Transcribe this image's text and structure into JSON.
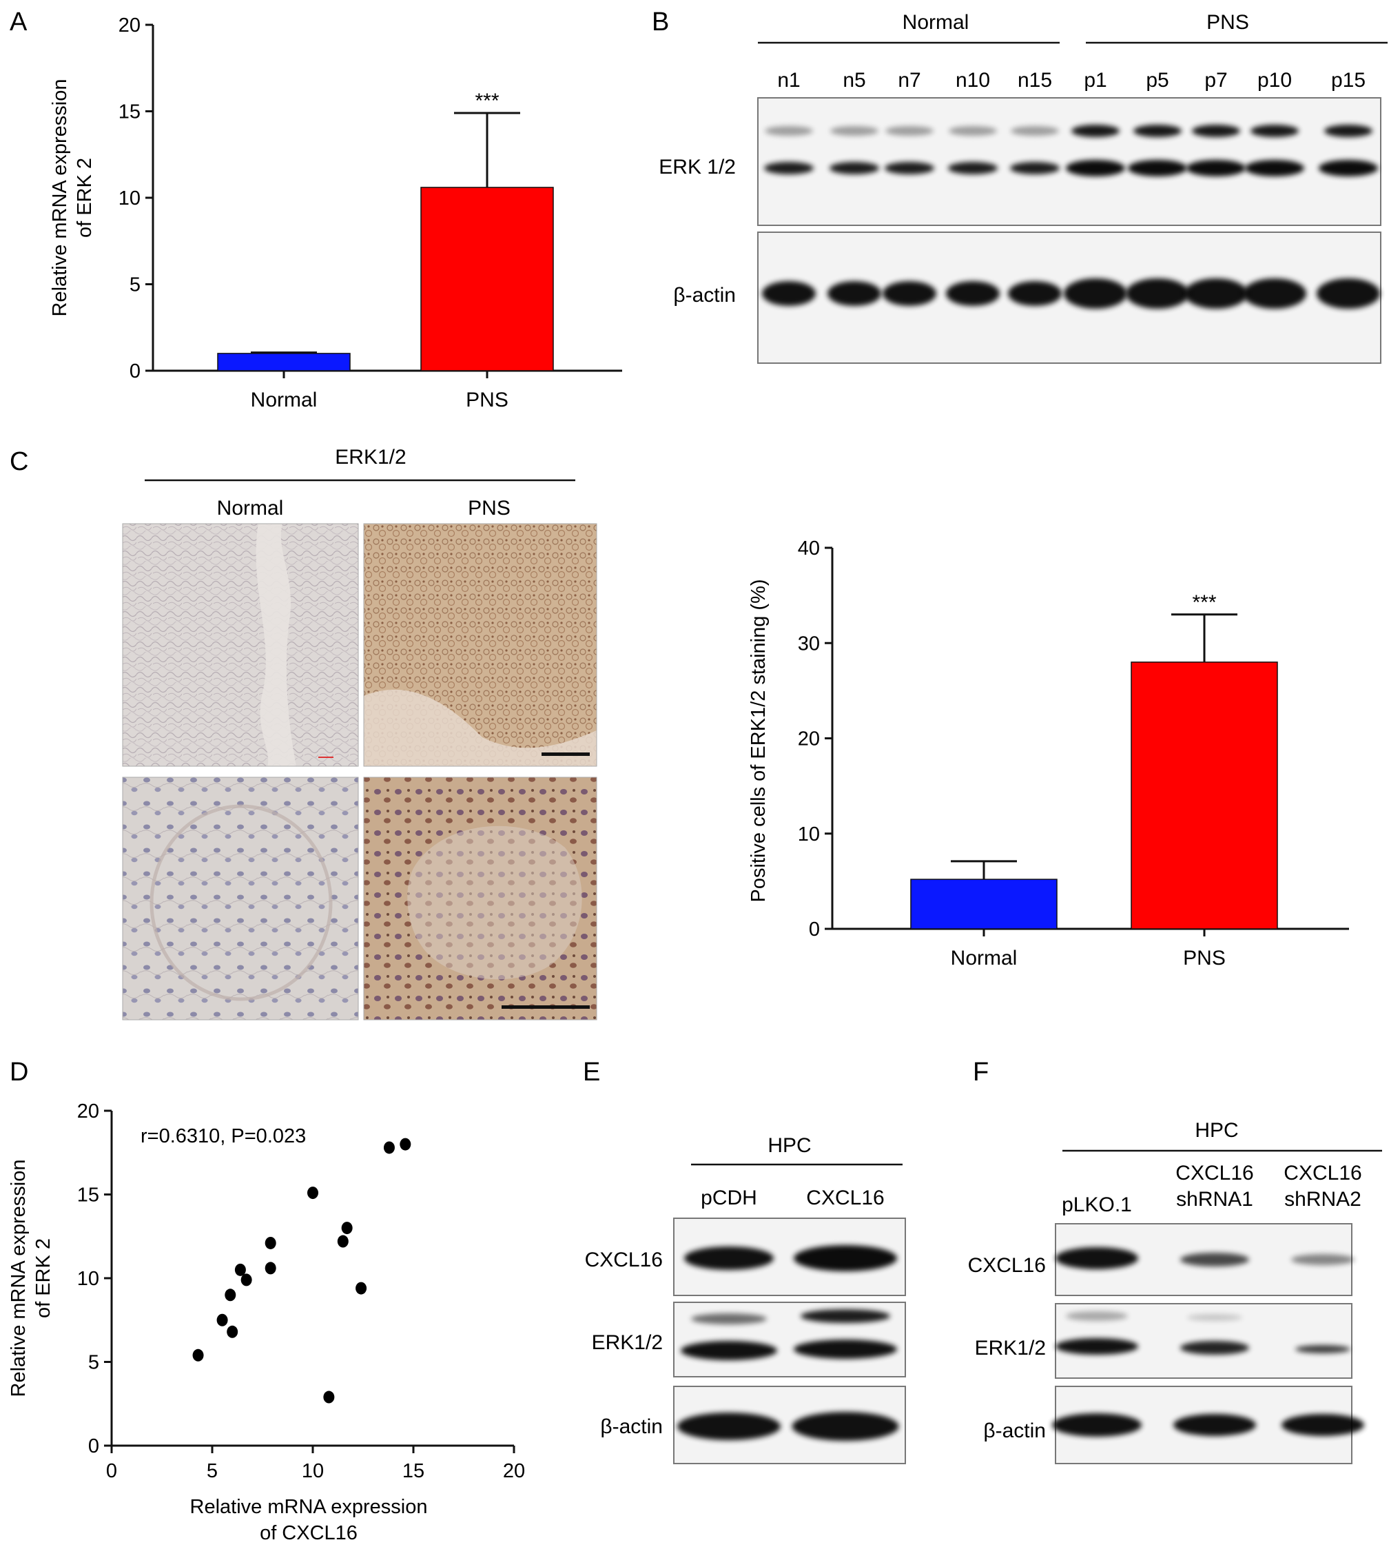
{
  "panels": {
    "A": {
      "letter": "A",
      "chart_data": {
        "type": "bar",
        "categories": [
          "Normal",
          "PNS"
        ],
        "values": [
          1.0,
          10.6
        ],
        "errors": [
          0.05,
          4.3
        ],
        "colors": [
          "#0a18ff",
          "#ff0000"
        ],
        "ylabel_line1": "Relative mRNA expression",
        "ylabel_line2": "of ERK 2",
        "ylim": [
          0,
          20
        ],
        "yticks": [
          0,
          5,
          10,
          15,
          20
        ],
        "significance": [
          "",
          "***"
        ],
        "grid": false
      }
    },
    "B": {
      "letter": "B",
      "groups": [
        "Normal",
        "PNS"
      ],
      "lanes": [
        "n1",
        "n5",
        "n7",
        "n10",
        "n15",
        "p1",
        "p5",
        "p7",
        "p10",
        "p15"
      ],
      "rows": [
        "ERK 1/2",
        "β-actin"
      ]
    },
    "C": {
      "letter": "C",
      "stain_title": "ERK1/2",
      "columns": [
        "Normal",
        "PNS"
      ],
      "chart_data": {
        "type": "bar",
        "categories": [
          "Normal",
          "PNS"
        ],
        "values": [
          5.2,
          28.0
        ],
        "errors": [
          1.9,
          5.0
        ],
        "colors": [
          "#0a18ff",
          "#ff0000"
        ],
        "ylabel": "Positive cells of ERK1/2 staining (%)",
        "ylim": [
          0,
          40
        ],
        "yticks": [
          0,
          10,
          20,
          30,
          40
        ],
        "significance": [
          "",
          "***"
        ],
        "grid": false
      }
    },
    "D": {
      "letter": "D",
      "chart_data": {
        "type": "scatter",
        "annotation": "r=0.6310, P=0.023",
        "xlabel_line1": "Relative mRNA expression",
        "xlabel_line2": "of CXCL16",
        "ylabel_line1": "Relative mRNA expression",
        "ylabel_line2": "of ERK 2",
        "xlim": [
          0,
          20
        ],
        "ylim": [
          0,
          20
        ],
        "xticks": [
          0,
          5,
          10,
          15,
          20
        ],
        "yticks": [
          0,
          5,
          10,
          15,
          20
        ],
        "points": [
          {
            "x": 4.3,
            "y": 5.4
          },
          {
            "x": 5.5,
            "y": 7.5
          },
          {
            "x": 5.9,
            "y": 9.0
          },
          {
            "x": 6.0,
            "y": 6.8
          },
          {
            "x": 6.4,
            "y": 10.5
          },
          {
            "x": 6.7,
            "y": 9.9
          },
          {
            "x": 7.9,
            "y": 12.1
          },
          {
            "x": 7.9,
            "y": 10.6
          },
          {
            "x": 10.0,
            "y": 15.1
          },
          {
            "x": 10.8,
            "y": 2.9
          },
          {
            "x": 11.5,
            "y": 12.2
          },
          {
            "x": 11.7,
            "y": 13.0
          },
          {
            "x": 12.4,
            "y": 9.4
          },
          {
            "x": 13.8,
            "y": 17.8
          },
          {
            "x": 14.6,
            "y": 18.0
          }
        ],
        "grid": false
      }
    },
    "E": {
      "letter": "E",
      "group": "HPC",
      "lanes": [
        "pCDH",
        "CXCL16"
      ],
      "rows": [
        "CXCL16",
        "ERK1/2",
        "β-actin"
      ]
    },
    "F": {
      "letter": "F",
      "group": "HPC",
      "lanes": [
        {
          "line1": "pLKO.1",
          "line2": ""
        },
        {
          "line1": "CXCL16",
          "line2": "shRNA1"
        },
        {
          "line1": "CXCL16",
          "line2": "shRNA2"
        }
      ],
      "rows": [
        "CXCL16",
        "ERK1/2",
        "β-actin"
      ]
    }
  }
}
